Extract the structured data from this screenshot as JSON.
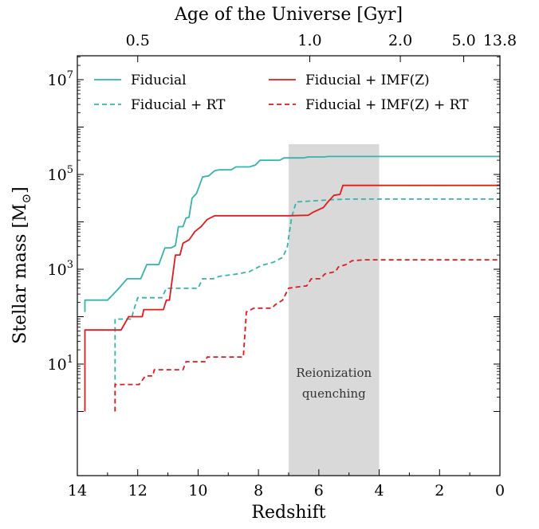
{
  "chart_data": {
    "type": "line",
    "xlabel": "Redshift",
    "ylabel": "Stellar mass [M",
    "ylabel_symbol": "⊙",
    "ylabel_close": "]",
    "top_axis_label": "Age of the Universe [Gyr]",
    "top_ticks": [
      {
        "label": "0.5",
        "z": 12.0
      },
      {
        "label": "1.0",
        "z": 6.3
      },
      {
        "label": "2.0",
        "z": 3.3
      },
      {
        "label": "5.0",
        "z": 1.2
      },
      {
        "label": "13.8",
        "z": 0.0
      }
    ],
    "xlim": [
      14,
      0
    ],
    "ylim_log10": [
      0.0,
      4.35
    ],
    "yscale": "log",
    "x_ticks": [
      {
        "label": "14",
        "value": 14
      },
      {
        "label": "12",
        "value": 12
      },
      {
        "label": "10",
        "value": 10
      },
      {
        "label": "8",
        "value": 8
      },
      {
        "label": "6",
        "value": 6
      },
      {
        "label": "4",
        "value": 4
      },
      {
        "label": "2",
        "value": 2
      },
      {
        "label": "0",
        "value": 0
      }
    ],
    "y_ticks": [
      {
        "base": "10",
        "exp": "1",
        "log": 1
      },
      {
        "base": "10",
        "exp": "3",
        "log": 3
      },
      {
        "base": "10",
        "exp": "5",
        "log": 5
      },
      {
        "base": "10",
        "exp": "7",
        "log": 7
      }
    ],
    "shaded_region": {
      "z_start": 7.0,
      "z_end": 4.0,
      "log_top": 5.64,
      "label_line1": "Reionization",
      "label_line2": "quenching"
    },
    "legend_position": "top",
    "series": [
      {
        "name": "Fiducial",
        "color": "#36b3ad",
        "dash": "solid",
        "points": [
          [
            13.75,
            2.1
          ],
          [
            13.75,
            2.35
          ],
          [
            13.0,
            2.35
          ],
          [
            12.65,
            2.58
          ],
          [
            12.35,
            2.8
          ],
          [
            11.9,
            2.8
          ],
          [
            11.7,
            3.1
          ],
          [
            11.3,
            3.1
          ],
          [
            11.1,
            3.45
          ],
          [
            10.9,
            3.45
          ],
          [
            10.75,
            3.5
          ],
          [
            10.65,
            3.9
          ],
          [
            10.5,
            3.9
          ],
          [
            10.4,
            4.08
          ],
          [
            10.3,
            4.1
          ],
          [
            10.2,
            4.5
          ],
          [
            10.05,
            4.6
          ],
          [
            9.85,
            4.95
          ],
          [
            9.65,
            4.97
          ],
          [
            9.45,
            5.08
          ],
          [
            9.3,
            5.1
          ],
          [
            8.9,
            5.1
          ],
          [
            8.75,
            5.16
          ],
          [
            8.3,
            5.16
          ],
          [
            8.1,
            5.2
          ],
          [
            7.95,
            5.3
          ],
          [
            7.3,
            5.3
          ],
          [
            7.15,
            5.35
          ],
          [
            6.5,
            5.35
          ],
          [
            6.35,
            5.37
          ],
          [
            5.8,
            5.37
          ],
          [
            5.7,
            5.38
          ],
          [
            0.0,
            5.38
          ]
        ]
      },
      {
        "name": "Fiducial + RT",
        "color": "#36b3ad",
        "dash": "dashed",
        "points": [
          [
            12.75,
            0.0
          ],
          [
            12.75,
            1.95
          ],
          [
            12.2,
            1.95
          ],
          [
            12.15,
            2.1
          ],
          [
            12.0,
            2.4
          ],
          [
            11.2,
            2.4
          ],
          [
            11.05,
            2.6
          ],
          [
            10.0,
            2.6
          ],
          [
            9.85,
            2.8
          ],
          [
            9.5,
            2.8
          ],
          [
            9.3,
            2.85
          ],
          [
            8.7,
            2.9
          ],
          [
            8.3,
            2.95
          ],
          [
            7.9,
            3.08
          ],
          [
            7.5,
            3.15
          ],
          [
            7.2,
            3.25
          ],
          [
            7.05,
            3.45
          ],
          [
            6.9,
            4.1
          ],
          [
            6.75,
            4.42
          ],
          [
            6.0,
            4.45
          ],
          [
            5.5,
            4.47
          ],
          [
            5.0,
            4.48
          ],
          [
            0.0,
            4.48
          ]
        ]
      },
      {
        "name": "Fiducial + IMF(Z)",
        "color": "#e31a1c",
        "dash": "solid",
        "points": [
          [
            13.75,
            0.0
          ],
          [
            13.75,
            1.72
          ],
          [
            12.55,
            1.72
          ],
          [
            12.3,
            2.0
          ],
          [
            11.85,
            2.0
          ],
          [
            11.8,
            2.15
          ],
          [
            11.15,
            2.15
          ],
          [
            11.05,
            2.35
          ],
          [
            10.95,
            2.35
          ],
          [
            10.75,
            3.3
          ],
          [
            10.6,
            3.3
          ],
          [
            10.5,
            3.55
          ],
          [
            10.3,
            3.62
          ],
          [
            10.1,
            3.8
          ],
          [
            9.9,
            3.9
          ],
          [
            9.7,
            4.05
          ],
          [
            9.45,
            4.13
          ],
          [
            7.0,
            4.13
          ],
          [
            6.35,
            4.14
          ],
          [
            6.2,
            4.2
          ],
          [
            5.85,
            4.3
          ],
          [
            5.7,
            4.42
          ],
          [
            5.5,
            4.56
          ],
          [
            5.3,
            4.58
          ],
          [
            5.2,
            4.77
          ],
          [
            0.0,
            4.77
          ]
        ]
      },
      {
        "name": "Fiducial + IMF(Z) + RT",
        "color": "#e31a1c",
        "dash": "dashed",
        "points": [
          [
            12.75,
            0.0
          ],
          [
            12.75,
            0.57
          ],
          [
            11.95,
            0.57
          ],
          [
            11.75,
            0.75
          ],
          [
            11.5,
            0.75
          ],
          [
            11.45,
            0.88
          ],
          [
            10.5,
            0.88
          ],
          [
            10.4,
            1.05
          ],
          [
            9.75,
            1.05
          ],
          [
            9.7,
            1.15
          ],
          [
            8.5,
            1.15
          ],
          [
            8.4,
            2.1
          ],
          [
            8.15,
            2.18
          ],
          [
            7.55,
            2.18
          ],
          [
            7.45,
            2.25
          ],
          [
            7.2,
            2.35
          ],
          [
            7.0,
            2.6
          ],
          [
            6.8,
            2.62
          ],
          [
            6.4,
            2.65
          ],
          [
            6.25,
            2.8
          ],
          [
            5.95,
            2.8
          ],
          [
            5.8,
            2.9
          ],
          [
            5.45,
            2.95
          ],
          [
            5.35,
            3.05
          ],
          [
            5.1,
            3.1
          ],
          [
            4.9,
            3.18
          ],
          [
            4.5,
            3.2
          ],
          [
            0.0,
            3.2
          ]
        ]
      }
    ]
  }
}
